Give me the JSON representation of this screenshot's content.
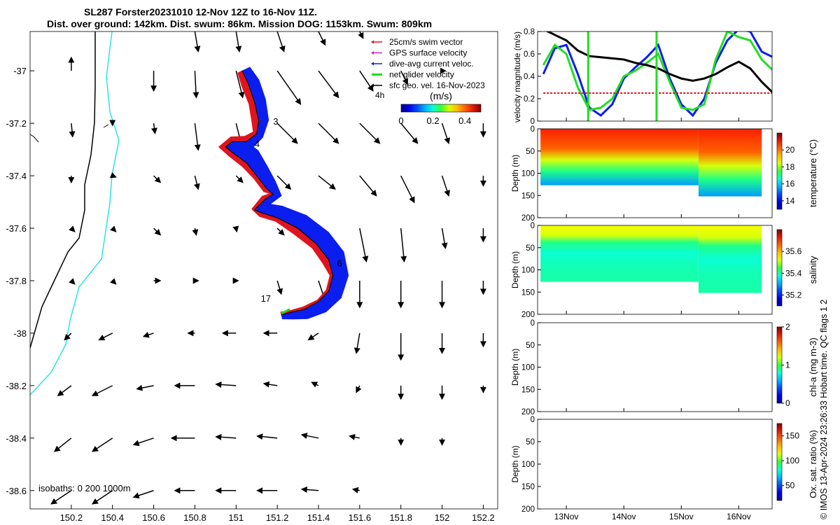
{
  "title": {
    "line1": "SL287 Forster20231010 12-Nov 12Z to 16-Nov 11Z.",
    "line2": "Dist. over ground: 142km. Dist. swum: 86km. Mission DOG: 1153km. Swum: 809km"
  },
  "credit": "© IMOS 13-Apr-2024 23:26:33 Hobart time. QC flags 1  2",
  "colors": {
    "swim_vector": "#e0141e",
    "gps_velocity": "#d01ad8",
    "current": "#0b1ef0",
    "glider": "#22dd22",
    "geo_vector": "#000000",
    "coast": "#000000",
    "isobath_200": "#2fe2e2"
  },
  "chart_data": [
    {
      "type": "map",
      "panel": "track-map",
      "x_ticks": [
        "150.2",
        "150.4",
        "150.6",
        "150.8",
        "151",
        "151.2",
        "151.4",
        "151.6",
        "151.8",
        "152",
        "152.2"
      ],
      "y_ticks": [
        "-37",
        "-37.2",
        "-37.4",
        "-37.6",
        "-37.8",
        "-38",
        "-38.2",
        "-38.4",
        "-38.6"
      ],
      "xlim": [
        150.0,
        152.27
      ],
      "ylim": [
        -38.67,
        -36.85
      ],
      "legend": {
        "placement": "top-right",
        "items": [
          {
            "label": "25cm/s swim vector",
            "color": "#e0141e"
          },
          {
            "label": "GPS surface velocity",
            "color": "#d01ad8"
          },
          {
            "label": "dive-avg current veloc.",
            "color": "#0b1ef0"
          },
          {
            "label": "net glider velocity",
            "color": "#22dd22"
          },
          {
            "label": "sfc geo. vel. 16-Nov-2023",
            "color": "#000000"
          }
        ],
        "note": "4h"
      },
      "colorbar": {
        "label": "(m/s)",
        "ticks": [
          "0",
          "0.2",
          "0.4"
        ],
        "range": [
          0,
          0.5
        ]
      },
      "isobaths_label": "isobaths: 0   200   1000m",
      "track_lon": [
        151.03,
        151.06,
        151.09,
        151.11,
        151.1,
        151.05,
        150.98,
        150.95,
        150.98,
        151.05,
        151.1,
        151.15,
        151.18,
        151.14,
        151.09,
        151.12,
        151.2,
        151.3,
        151.39,
        151.45,
        151.47,
        151.45,
        151.4,
        151.33,
        151.27,
        151.22
      ],
      "track_lat": [
        -37.0,
        -37.05,
        -37.12,
        -37.19,
        -37.24,
        -37.27,
        -37.27,
        -37.29,
        -37.31,
        -37.35,
        -37.4,
        -37.45,
        -37.47,
        -37.49,
        -37.53,
        -37.54,
        -37.56,
        -37.6,
        -37.66,
        -37.72,
        -37.78,
        -37.84,
        -37.88,
        -37.91,
        -37.92,
        -37.93
      ],
      "day_labels": [
        {
          "label": "3",
          "lon": 151.18,
          "lat": -37.205
        },
        {
          "label": "4",
          "lon": 151.09,
          "lat": -37.29
        },
        {
          "label": "6",
          "lon": 151.49,
          "lat": -37.745
        },
        {
          "label": "17",
          "lon": 151.12,
          "lat": -37.88
        }
      ],
      "vector_field": {
        "lons": [
          150.2,
          150.4,
          150.6,
          150.8,
          151.0,
          151.2,
          151.4,
          151.6,
          151.8,
          152.0,
          152.2
        ],
        "lats": [
          -36.85,
          -37.0,
          -37.2,
          -37.4,
          -37.6,
          -37.8,
          -38.0,
          -38.2,
          -38.4,
          -38.6
        ],
        "u": [
          [
            0,
            0,
            0,
            0.05,
            0.05,
            0.1,
            0.1,
            0.05,
            0,
            0,
            0
          ],
          [
            0,
            0,
            0,
            0.02,
            0.1,
            0.35,
            0.3,
            0.2,
            0.1,
            0.05,
            0
          ],
          [
            0.02,
            0,
            0.02,
            0.05,
            0.1,
            0.3,
            0.3,
            0.3,
            0.25,
            0.1,
            0
          ],
          [
            0,
            0.05,
            0.1,
            0.05,
            0.1,
            0.2,
            0.25,
            0.25,
            0.2,
            0.1,
            0
          ],
          [
            0.05,
            0.05,
            0.1,
            0.02,
            0.01,
            0.1,
            0.15,
            0.1,
            0.05,
            0.05,
            0
          ],
          [
            0.05,
            0.05,
            0.1,
            0.05,
            0.03,
            0.06,
            0.1,
            0,
            0,
            0,
            0
          ],
          [
            -0.1,
            -0.2,
            -0.15,
            -0.1,
            -0.2,
            -0.2,
            -0.15,
            -0.05,
            0,
            0,
            0
          ],
          [
            -0.2,
            -0.3,
            -0.25,
            -0.3,
            -0.3,
            -0.2,
            -0.1,
            -0.05,
            0,
            0,
            0
          ],
          [
            -0.25,
            -0.3,
            -0.3,
            -0.35,
            -0.3,
            -0.3,
            -0.25,
            -0.15,
            0,
            0,
            0
          ],
          [
            -0.3,
            -0.3,
            -0.3,
            -0.3,
            -0.3,
            -0.3,
            -0.25,
            -0.1,
            0,
            0,
            0
          ]
        ],
        "v": [
          [
            0,
            0,
            0,
            -0.3,
            -0.3,
            -0.3,
            -0.2,
            -0.1,
            0,
            0,
            0
          ],
          [
            0.2,
            0,
            -0.3,
            -0.4,
            -0.4,
            -0.5,
            -0.4,
            -0.3,
            -0.2,
            0,
            0
          ],
          [
            -0.2,
            -0.03,
            -0.15,
            -0.4,
            -0.4,
            -0.3,
            -0.3,
            -0.3,
            -0.3,
            -0.3,
            -0.2
          ],
          [
            -0.1,
            -0.02,
            -0.1,
            -0.2,
            -0.1,
            -0.2,
            -0.2,
            -0.3,
            -0.4,
            -0.3,
            -0.15
          ],
          [
            -0.05,
            -0.05,
            -0.1,
            -0.1,
            -0.05,
            -0.1,
            -0.4,
            -0.5,
            -0.5,
            -0.3,
            -0.2
          ],
          [
            -0.05,
            -0.05,
            0,
            0,
            0,
            -0.2,
            -0.3,
            -0.4,
            -0.4,
            -0.4,
            -0.2
          ],
          [
            -0.1,
            -0.1,
            -0.05,
            0,
            0,
            0,
            -0.1,
            -0.3,
            -0.4,
            -0.3,
            -0.2
          ],
          [
            -0.15,
            -0.15,
            -0.05,
            0,
            0.02,
            0.03,
            0.05,
            -0.1,
            -0.2,
            -0.2,
            -0.1
          ],
          [
            -0.2,
            -0.2,
            -0.1,
            0,
            0.02,
            0.03,
            0.05,
            0.03,
            -0.1,
            -0.1,
            0
          ],
          [
            -0.2,
            -0.2,
            -0.1,
            0,
            0,
            0,
            0.02,
            0.02,
            0,
            0,
            0
          ]
        ]
      }
    },
    {
      "type": "line",
      "panel": "velocity",
      "ylabel": "velocity magnitude (m/s)",
      "ylim": [
        0,
        0.8
      ],
      "y_ticks": [
        "0",
        "0.2",
        "0.4",
        "0.6",
        "0.8"
      ],
      "x": [
        12.6,
        12.8,
        13.0,
        13.2,
        13.4,
        13.6,
        13.8,
        14.0,
        14.2,
        14.4,
        14.6,
        14.8,
        15.0,
        15.2,
        15.4,
        15.6,
        15.8,
        16.0,
        16.2,
        16.4,
        16.6
      ],
      "series": [
        {
          "color": "#0b1ef0",
          "values": [
            0.42,
            0.65,
            0.68,
            0.42,
            0.12,
            0.05,
            0.15,
            0.38,
            0.48,
            0.57,
            0.68,
            0.38,
            0.15,
            0.05,
            0.2,
            0.52,
            0.72,
            0.82,
            0.8,
            0.62,
            0.57
          ]
        },
        {
          "color": "#22dd22",
          "values": [
            0.5,
            0.68,
            0.6,
            0.3,
            0.1,
            0.12,
            0.2,
            0.4,
            0.45,
            0.52,
            0.6,
            0.35,
            0.12,
            0.1,
            0.15,
            0.55,
            0.8,
            0.75,
            0.72,
            0.55,
            0.45
          ]
        },
        {
          "color": "#000000",
          "values": [
            0.82,
            0.77,
            0.72,
            0.63,
            0.58,
            0.57,
            0.56,
            0.55,
            0.52,
            0.5,
            0.47,
            0.42,
            0.38,
            0.36,
            0.38,
            0.42,
            0.48,
            0.53,
            0.47,
            0.35,
            0.25
          ]
        },
        {
          "color": "#e0141e",
          "dashed": true,
          "values": [
            0.25,
            0.25,
            0.25,
            0.25,
            0.25,
            0.25,
            0.25,
            0.25,
            0.25,
            0.25,
            0.25,
            0.25,
            0.25,
            0.25,
            0.25,
            0.25,
            0.25,
            0.25,
            0.25,
            0.25,
            0.25
          ]
        }
      ]
    },
    {
      "type": "heatmap",
      "panel": "temperature",
      "ylabel": "Depth (m)",
      "ylim": [
        0,
        200
      ],
      "y_ticks": [
        "0",
        "50",
        "100",
        "150",
        "200"
      ],
      "colorbar": {
        "label": "temperature (°C)",
        "ticks": [
          "14",
          "16",
          "18",
          "20"
        ],
        "range": [
          13,
          22
        ]
      },
      "surface_value": 21,
      "bottom_value": 15.5
    },
    {
      "type": "heatmap",
      "panel": "salinity",
      "ylabel": "Depth (m)",
      "ylim": [
        0,
        200
      ],
      "y_ticks": [
        "0",
        "50",
        "100",
        "150",
        "200"
      ],
      "colorbar": {
        "label": "salinity",
        "ticks": [
          "35.2",
          "35.4",
          "35.6"
        ],
        "range": [
          35.1,
          35.8
        ]
      },
      "surface_value": 35.55,
      "bottom_value": 35.4
    },
    {
      "type": "heatmap",
      "panel": "chl-a",
      "ylabel": "Depth (m)",
      "ylim": [
        0,
        200
      ],
      "y_ticks": [
        "0",
        "50",
        "100",
        "150",
        "200"
      ],
      "colorbar": {
        "label": "chl-a (mg m-3)",
        "ticks": [
          "0",
          "1",
          "2"
        ],
        "range": [
          0,
          2
        ]
      },
      "empty": true
    },
    {
      "type": "heatmap",
      "panel": "oxygen",
      "ylabel": "Depth (m)",
      "ylim": [
        0,
        200
      ],
      "y_ticks": [
        "0",
        "50",
        "100",
        "150",
        "200"
      ],
      "colorbar": {
        "label": "Ox. sat. ratio (%)",
        "ticks": [
          "50",
          "100",
          "150"
        ],
        "range": [
          20,
          175
        ]
      },
      "empty": true
    }
  ],
  "time_axis": {
    "x_ticks": [
      "13Nov",
      "14Nov",
      "15Nov",
      "16Nov"
    ],
    "x_tick_values": [
      13,
      14,
      15,
      16
    ],
    "xlim": [
      12.5,
      16.58
    ]
  }
}
